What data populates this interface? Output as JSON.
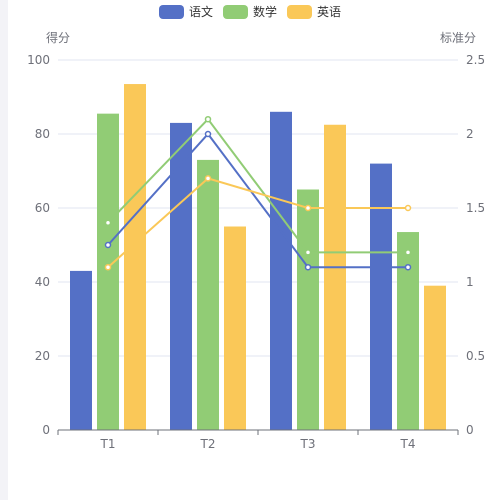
{
  "chart_data": {
    "type": "bar",
    "categories": [
      "T1",
      "T2",
      "T3",
      "T4"
    ],
    "series": [
      {
        "name": "语文",
        "type": "bar",
        "axis": "left",
        "values": [
          43,
          83,
          86,
          72
        ],
        "color": "#5470c6"
      },
      {
        "name": "数学",
        "type": "bar",
        "axis": "left",
        "values": [
          85.5,
          73,
          65,
          53.5
        ],
        "color": "#91cc75"
      },
      {
        "name": "英语",
        "type": "bar",
        "axis": "left",
        "values": [
          93.5,
          55,
          82.5,
          39
        ],
        "color": "#fac858"
      }
    ],
    "line_series": [
      {
        "legend": "语文",
        "type": "line",
        "axis": "right",
        "values": [
          1.25,
          2.0,
          1.1,
          1.1
        ],
        "color": "#5470c6"
      },
      {
        "legend": "数学",
        "type": "line",
        "axis": "right",
        "values": [
          1.4,
          2.1,
          1.2,
          1.2
        ],
        "color": "#91cc75"
      },
      {
        "legend": "英语",
        "type": "line",
        "axis": "right",
        "values": [
          1.1,
          1.7,
          1.5,
          1.5
        ],
        "color": "#fac858"
      }
    ],
    "y_left": {
      "label": "得分",
      "min": 0,
      "max": 100,
      "ticks": [
        "0",
        "20",
        "40",
        "60",
        "80",
        "100"
      ]
    },
    "y_right": {
      "label": "标准分",
      "min": 0,
      "max": 2.5,
      "ticks": [
        "0",
        "0.5",
        "1",
        "1.5",
        "2",
        "2.5"
      ]
    },
    "grid": true,
    "legend_position": "top-center"
  }
}
